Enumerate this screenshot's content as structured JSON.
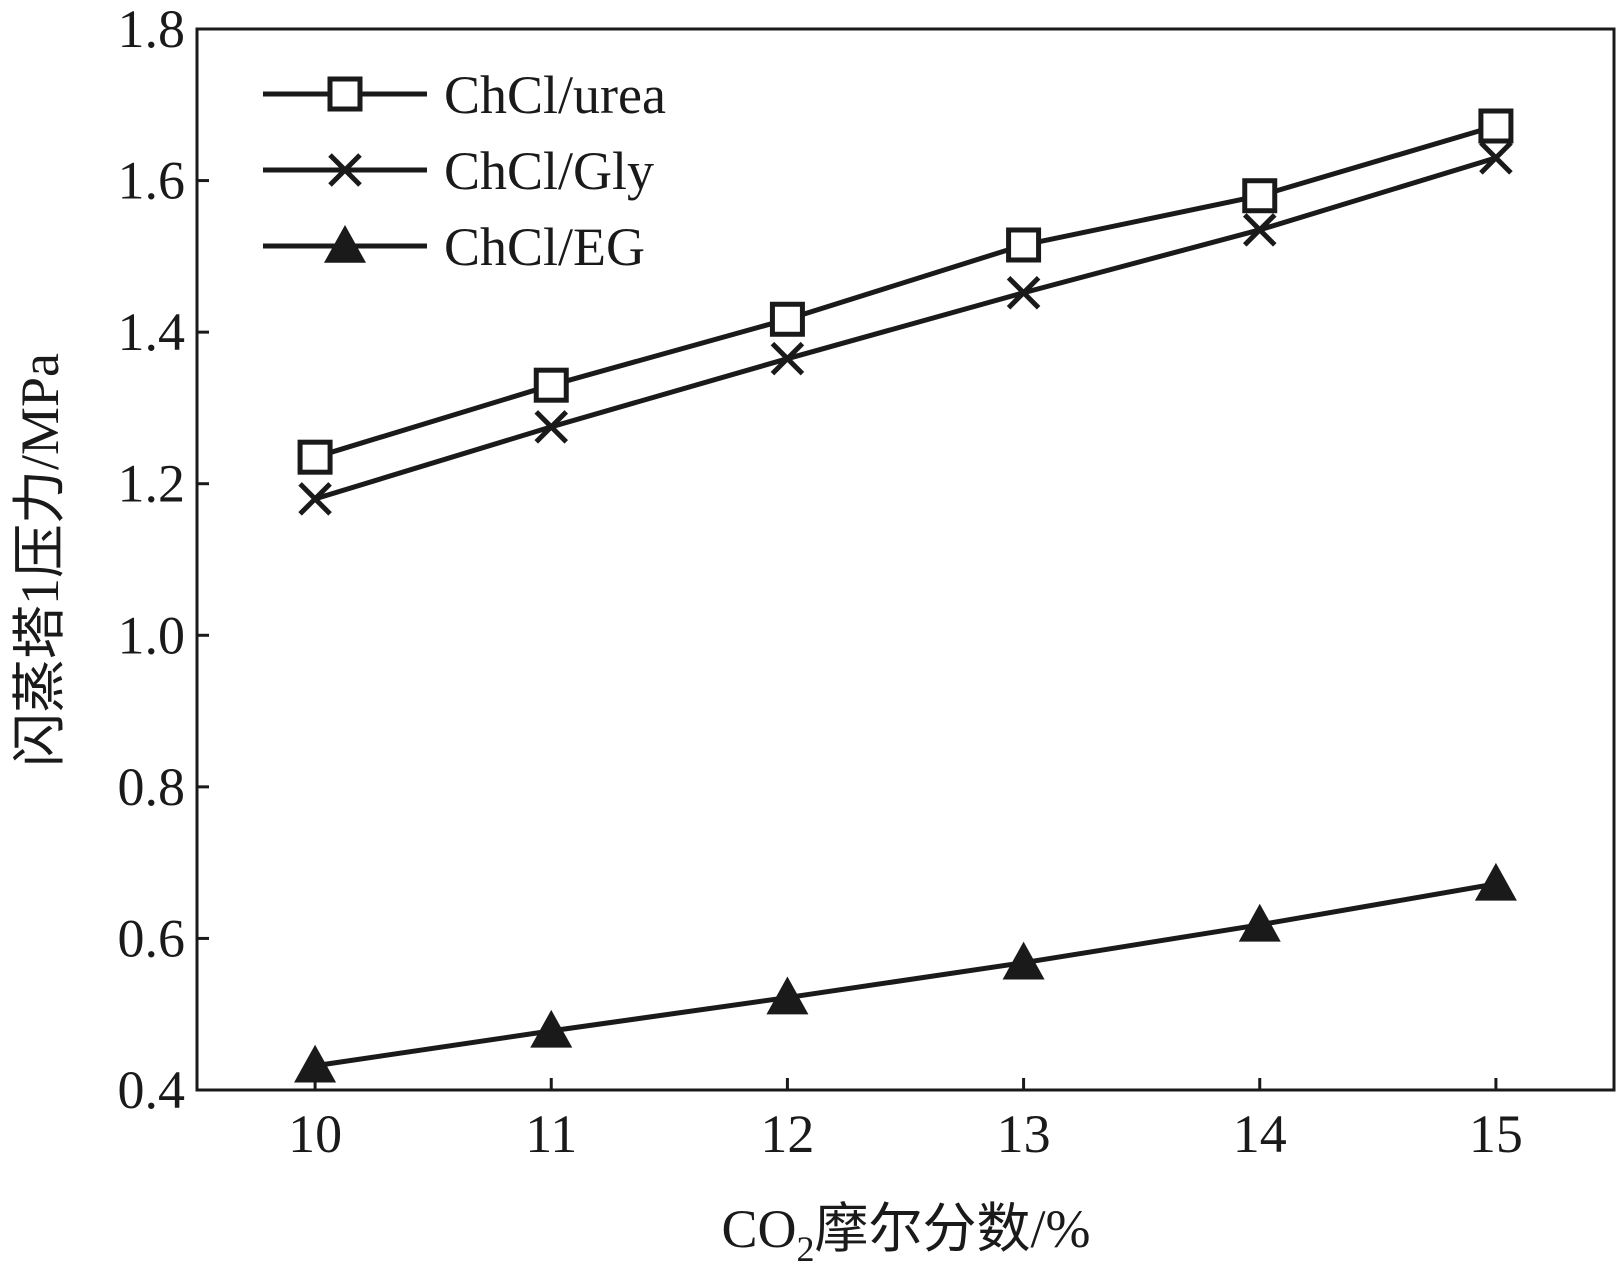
{
  "chart_data": {
    "type": "line",
    "title": "",
    "xlabel_main": "CO",
    "xlabel_sub": "2",
    "xlabel_rest": "摩尔分数/%",
    "ylabel": "闪蒸塔1压力/MPa",
    "x": [
      10,
      11,
      12,
      13,
      14,
      15
    ],
    "xlim": [
      9.5,
      15.5
    ],
    "ylim": [
      0.4,
      1.8
    ],
    "x_ticks": [
      "10",
      "11",
      "12",
      "13",
      "14",
      "15"
    ],
    "y_ticks": [
      "0.4",
      "0.6",
      "0.8",
      "1.0",
      "1.2",
      "1.4",
      "1.6",
      "1.8"
    ],
    "grid": false,
    "legend_position": "top-left",
    "series": [
      {
        "name": "ChCl/urea",
        "marker": "open-square",
        "values": [
          1.235,
          1.33,
          1.417,
          1.515,
          1.58,
          1.672
        ]
      },
      {
        "name": "ChCl/Gly",
        "marker": "x",
        "values": [
          1.18,
          1.275,
          1.365,
          1.452,
          1.535,
          1.63
        ]
      },
      {
        "name": "ChCl/EG",
        "marker": "filled-triangle",
        "values": [
          0.432,
          0.478,
          0.522,
          0.568,
          0.618,
          0.672
        ]
      }
    ]
  }
}
